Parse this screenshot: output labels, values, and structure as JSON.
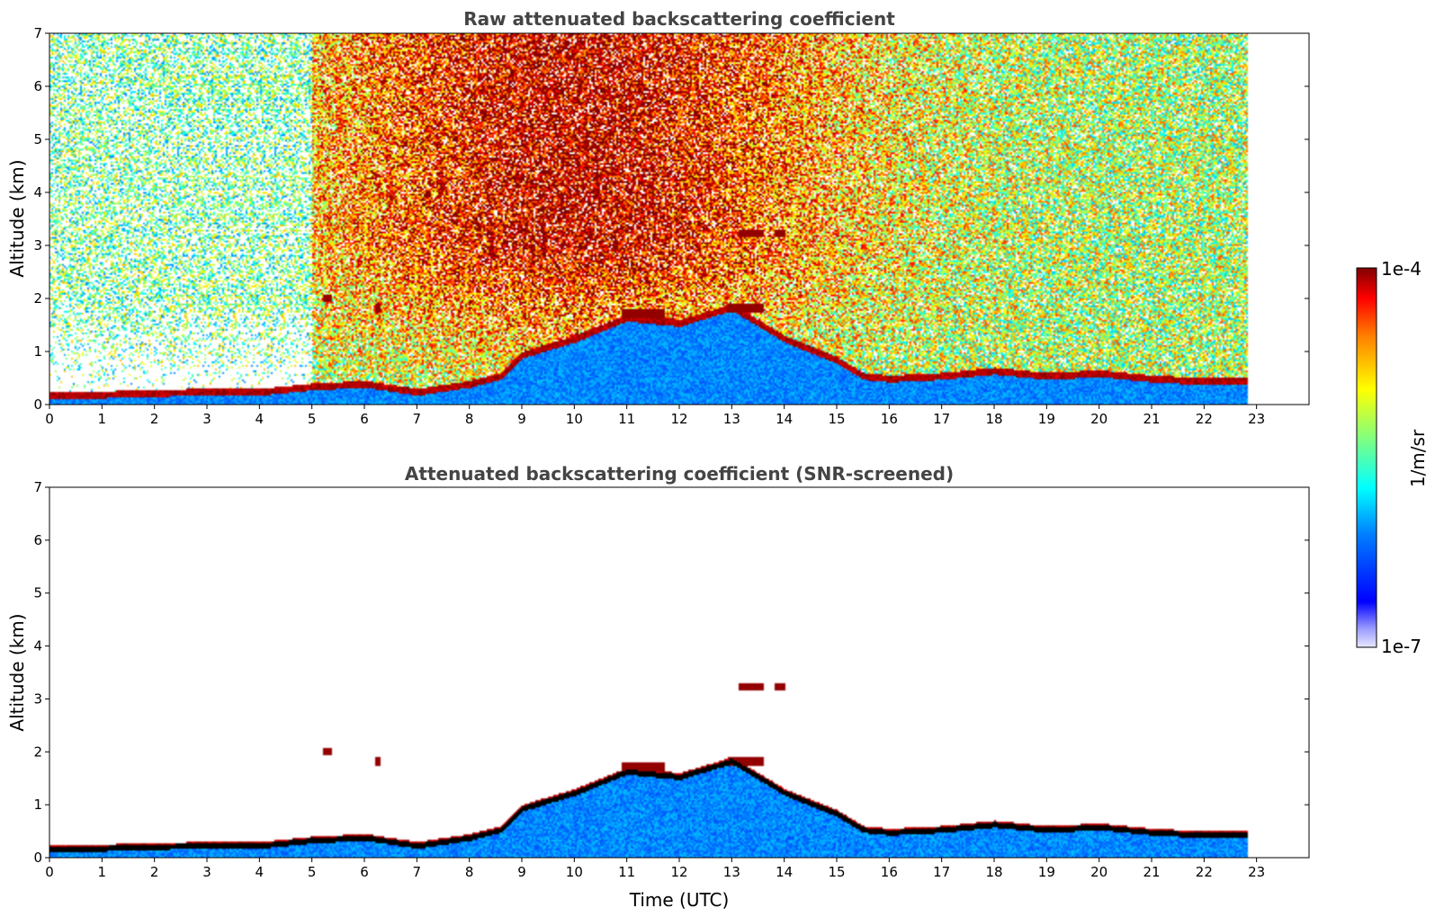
{
  "chart_data": [
    {
      "type": "heatmap",
      "id": "raw",
      "title": "Raw attenuated backscattering coefficient",
      "xlabel": "",
      "ylabel": "Altitude (km)",
      "xlim": [
        0,
        24
      ],
      "ylim": [
        0,
        7
      ],
      "xticks": [
        "0",
        "1",
        "2",
        "3",
        "4",
        "5",
        "6",
        "7",
        "8",
        "9",
        "10",
        "11",
        "12",
        "13",
        "14",
        "15",
        "16",
        "17",
        "18",
        "19",
        "20",
        "21",
        "22",
        "23"
      ],
      "yticks": [
        "0",
        "1",
        "2",
        "3",
        "4",
        "5",
        "6",
        "7"
      ],
      "data_end_time": 22.8,
      "boundary_layer_top_km": [
        [
          0,
          0.15
        ],
        [
          1,
          0.15
        ],
        [
          2,
          0.18
        ],
        [
          3,
          0.2
        ],
        [
          4,
          0.2
        ],
        [
          5,
          0.3
        ],
        [
          6,
          0.35
        ],
        [
          7,
          0.2
        ],
        [
          8,
          0.35
        ],
        [
          8.6,
          0.5
        ],
        [
          9,
          0.9
        ],
        [
          10,
          1.2
        ],
        [
          11,
          1.6
        ],
        [
          12,
          1.5
        ],
        [
          13,
          1.8
        ],
        [
          14,
          1.2
        ],
        [
          15,
          0.8
        ],
        [
          15.5,
          0.5
        ],
        [
          16,
          0.45
        ],
        [
          17,
          0.5
        ],
        [
          18,
          0.6
        ],
        [
          19,
          0.5
        ],
        [
          20,
          0.55
        ],
        [
          21,
          0.45
        ],
        [
          22,
          0.4
        ],
        [
          22.8,
          0.4
        ]
      ],
      "cloud_layers": [
        {
          "t_start": 13.1,
          "t_end": 13.6,
          "alt_km": 3.2
        },
        {
          "t_start": 13.8,
          "t_end": 14.0,
          "alt_km": 3.22
        },
        {
          "t_start": 5.2,
          "t_end": 5.35,
          "alt_km": 2.0
        },
        {
          "t_start": 6.2,
          "t_end": 6.3,
          "alt_km": 1.8
        },
        {
          "t_start": 10.9,
          "t_end": 11.7,
          "alt_km": 1.7
        },
        {
          "t_start": 12.9,
          "t_end": 13.6,
          "alt_km": 1.8
        }
      ]
    },
    {
      "type": "heatmap",
      "id": "screened",
      "title": "Attenuated backscattering coefficient (SNR-screened)",
      "xlabel": "Time (UTC)",
      "ylabel": "Altitude (km)",
      "xlim": [
        0,
        24
      ],
      "ylim": [
        0,
        7
      ],
      "xticks": [
        "0",
        "1",
        "2",
        "3",
        "4",
        "5",
        "6",
        "7",
        "8",
        "9",
        "10",
        "11",
        "12",
        "13",
        "14",
        "15",
        "16",
        "17",
        "18",
        "19",
        "20",
        "21",
        "22",
        "23"
      ],
      "yticks": [
        "0",
        "1",
        "2",
        "3",
        "4",
        "5",
        "6",
        "7"
      ],
      "data_end_time": 22.8
    }
  ],
  "colorbar": {
    "label": "1/m/sr",
    "max_label": "1e-4",
    "min_label": "1e-7",
    "colormap": "jet",
    "scale": "log",
    "range": [
      1e-07,
      0.0001
    ]
  }
}
